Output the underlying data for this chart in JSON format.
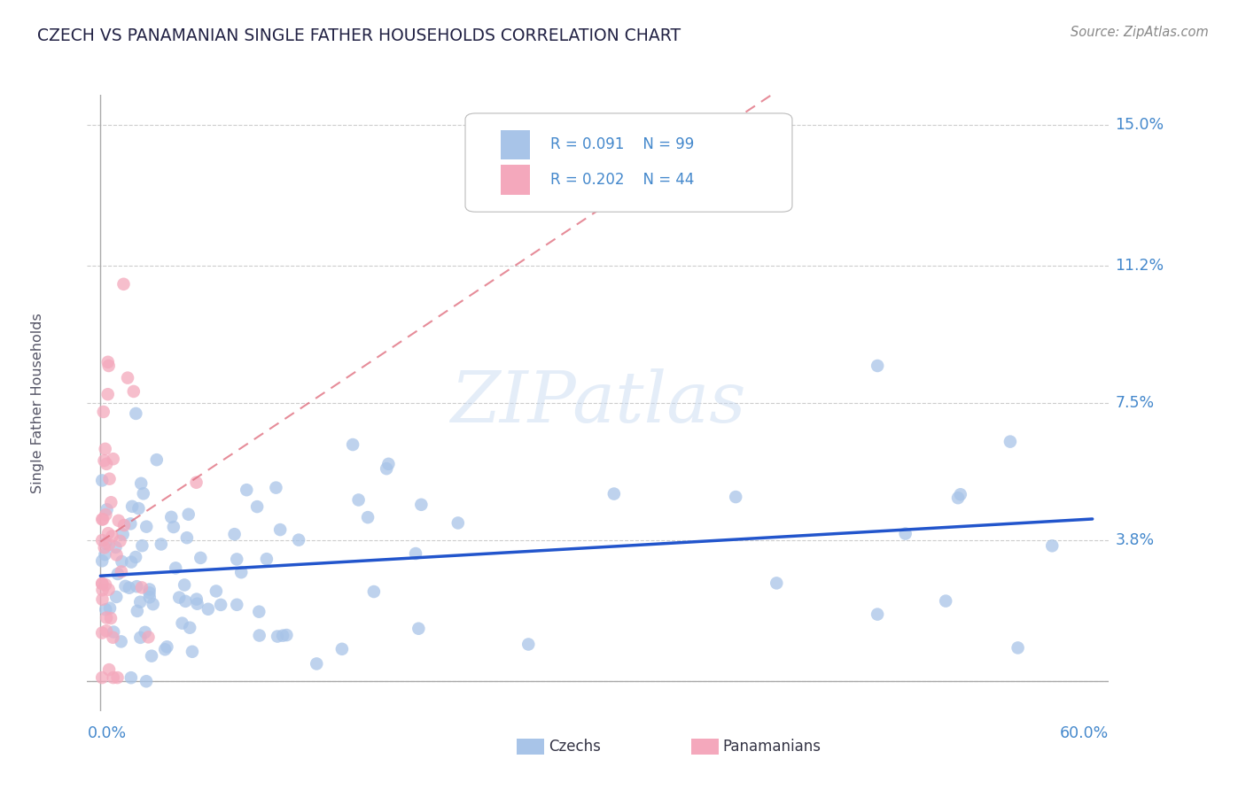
{
  "title": "CZECH VS PANAMANIAN SINGLE FATHER HOUSEHOLDS CORRELATION CHART",
  "source": "Source: ZipAtlas.com",
  "ylabel": "Single Father Households",
  "legend_czech": {
    "R": "0.091",
    "N": "99",
    "label": "Czechs"
  },
  "legend_pan": {
    "R": "0.202",
    "N": "44",
    "label": "Panamanians"
  },
  "color_czech": "#a8c4e8",
  "color_pan": "#f4a8bc",
  "color_czech_line": "#2255cc",
  "color_pan_line": "#e07080",
  "axis_label_color": "#4488cc",
  "title_color": "#222244",
  "source_color": "#888888",
  "background_color": "#ffffff",
  "grid_color": "#cccccc",
  "border_color": "#aaaaaa",
  "xlim": [
    0.0,
    0.6
  ],
  "ylim": [
    0.0,
    0.15
  ],
  "ytick_labels": [
    "15.0%",
    "11.2%",
    "7.5%",
    "3.8%"
  ],
  "ytick_values": [
    0.15,
    0.112,
    0.075,
    0.038
  ],
  "watermark": "ZIPatlas"
}
